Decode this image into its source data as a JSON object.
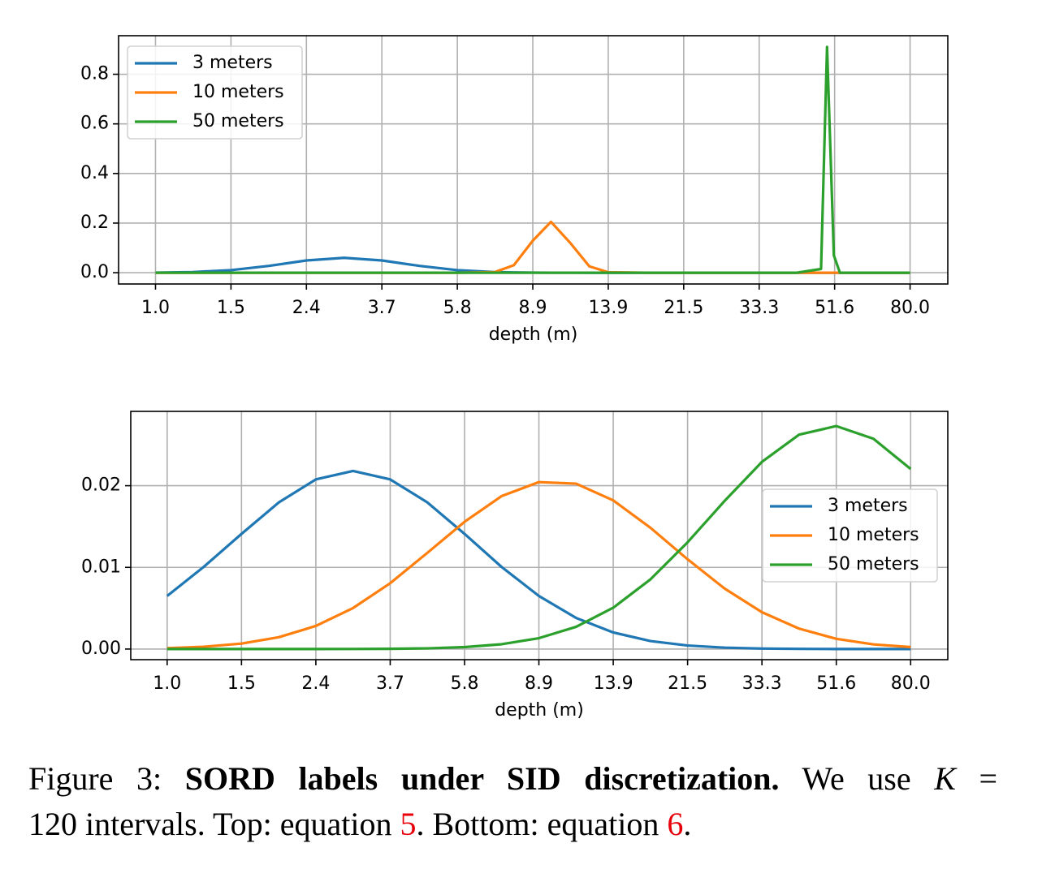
{
  "chart_data": [
    {
      "type": "line",
      "xlabel": "depth (m)",
      "xscale": "log",
      "grid": true,
      "legend": "upper left",
      "x": [
        1.0,
        1.22,
        1.5,
        1.9,
        2.4,
        2.98,
        3.7,
        4.63,
        5.8,
        7.18,
        7.99,
        8.9,
        9.91,
        11.12,
        12.43,
        13.9,
        17.29,
        21.5,
        26.76,
        33.3,
        41.45,
        47.69,
        49.38,
        51.37,
        53.21,
        64.25,
        80.0
      ],
      "series": [
        {
          "name": "3 meters",
          "color": "#1f77b4",
          "values": [
            0.00046,
            0.0026,
            0.0103,
            0.0275,
            0.0494,
            0.06,
            0.0494,
            0.0275,
            0.0103,
            0.0026,
            0.0012,
            0.00046,
            0.00017,
            5e-05,
            0,
            0,
            0,
            0,
            0,
            0,
            0,
            0,
            0,
            0,
            0,
            0,
            0
          ]
        },
        {
          "name": "10 meters",
          "color": "#ff7f0e",
          "values": [
            0,
            0,
            0,
            0,
            0,
            0,
            0,
            0,
            0,
            0.0026,
            0.03,
            0.129,
            0.205,
            0.119,
            0.0256,
            0.002,
            0,
            0,
            0,
            0,
            0,
            0,
            0,
            0,
            0,
            0,
            0
          ]
        },
        {
          "name": "50 meters",
          "color": "#2ca02c",
          "values": [
            0,
            0,
            0,
            0,
            0,
            0,
            0,
            0,
            0,
            0,
            0,
            0,
            0,
            0,
            0,
            0,
            0,
            0,
            0,
            0,
            0,
            0.015,
            0.91,
            0.07,
            0,
            0,
            0
          ]
        }
      ],
      "xlim": [
        0.82,
        99.6
      ],
      "xticks": [
        {
          "value": 1,
          "label": "1.0"
        },
        1.5,
        2.4,
        3.7,
        5.8,
        8.9,
        13.9,
        21.5,
        33.3,
        51.6,
        {
          "value": 80,
          "label": "80.0"
        }
      ],
      "ylim": [
        -0.0455,
        0.9555
      ],
      "yticks": [
        {
          "value": 0,
          "label": "0.0"
        },
        0.2,
        0.4,
        0.6,
        0.8
      ]
    },
    {
      "type": "line",
      "xlabel": "depth (m)",
      "xscale": "log",
      "grid": true,
      "legend": "center right",
      "x": [
        1.0,
        1.22,
        1.5,
        1.9,
        2.4,
        2.98,
        3.7,
        4.63,
        5.8,
        7.18,
        8.9,
        11.12,
        13.9,
        17.29,
        21.5,
        26.76,
        33.3,
        41.45,
        51.6,
        64.25,
        80.0
      ],
      "series": [
        {
          "name": "3 meters",
          "color": "#1f77b4",
          "values": [
            0.0065,
            0.01005,
            0.0141,
            0.01796,
            0.02077,
            0.0218,
            0.02077,
            0.01796,
            0.0141,
            0.01005,
            0.0065,
            0.00381,
            0.00203,
            0.00098,
            0.00043,
            0.00017,
            6e-05,
            2e-05,
            6e-06,
            0,
            0
          ]
        },
        {
          "name": "10 meters",
          "color": "#ff7f0e",
          "values": [
            0.00011,
            0.00028,
            0.00067,
            0.00145,
            0.00283,
            0.00502,
            0.00806,
            0.01177,
            0.01558,
            0.01873,
            0.02044,
            0.02025,
            0.0182,
            0.01485,
            0.01099,
            0.00739,
            0.00451,
            0.0025,
            0.00125,
            0.00057,
            0.00024
          ]
        },
        {
          "name": "50 meters",
          "color": "#2ca02c",
          "values": [
            0,
            0,
            0,
            6e-07,
            2e-06,
            9e-06,
            2.9e-05,
            8.6e-05,
            0.00024,
            0.00059,
            0.00133,
            0.00272,
            0.00506,
            0.00853,
            0.01307,
            0.01816,
            0.02292,
            0.02625,
            0.0273,
            0.02575,
            0.02205
          ]
        }
      ],
      "xlim": [
        0.82,
        99.6
      ],
      "xticks": [
        {
          "value": 1,
          "label": "1.0"
        },
        1.5,
        2.4,
        3.7,
        5.8,
        8.9,
        13.9,
        21.5,
        33.3,
        51.6,
        {
          "value": 80,
          "label": "80.0"
        }
      ],
      "ylim": [
        -0.0013,
        0.0291
      ],
      "yticks": [
        {
          "value": 0,
          "label": "0.00"
        },
        0.01,
        0.02
      ]
    }
  ],
  "caption": {
    "label": "Figure 3:",
    "bold": "SORD labels under SID discretization.",
    "text1": "We use",
    "symbol": "K",
    "equals": "=",
    "text2": "120 intervals. Top: equation",
    "ref1": "5",
    "text3": ". Bottom: equation",
    "ref2": "6",
    "end": "."
  }
}
